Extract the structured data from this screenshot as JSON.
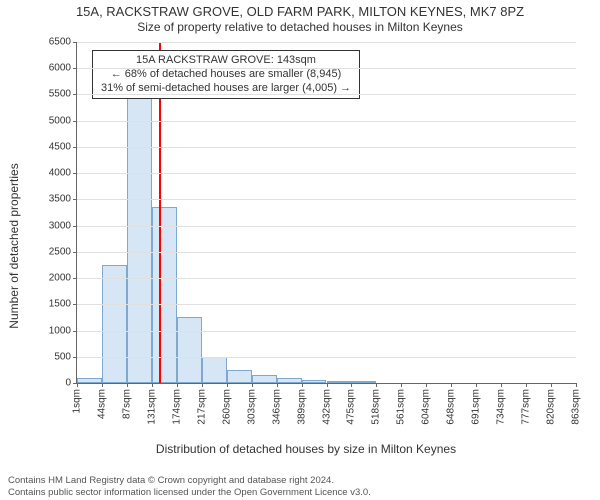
{
  "title": "15A, RACKSTRAW GROVE, OLD FARM PARK, MILTON KEYNES, MK7 8PZ",
  "subtitle": "Size of property relative to detached houses in Milton Keynes",
  "chart": {
    "type": "histogram",
    "xlabel": "Distribution of detached houses by size in Milton Keynes",
    "ylabel": "Number of detached properties",
    "background_color": "#ffffff",
    "grid_color": "#e0e0e0",
    "axis_color": "#666666",
    "bar_fill": "#d7e6f4",
    "bar_stroke": "#7fa8d0",
    "refline_color": "#ff0000",
    "title_fontsize": 13,
    "label_fontsize": 12,
    "tick_fontsize": 10,
    "annot_fontsize": 11,
    "y": {
      "min": 0,
      "max": 6500,
      "ticks": [
        0,
        500,
        1000,
        1500,
        2000,
        2500,
        3000,
        3500,
        4000,
        4500,
        5000,
        5500,
        6000,
        6500
      ]
    },
    "x": {
      "tick_labels": [
        "1sqm",
        "44sqm",
        "87sqm",
        "131sqm",
        "174sqm",
        "217sqm",
        "260sqm",
        "303sqm",
        "346sqm",
        "389sqm",
        "432sqm",
        "475sqm",
        "518sqm",
        "561sqm",
        "604sqm",
        "648sqm",
        "691sqm",
        "734sqm",
        "777sqm",
        "820sqm",
        "863sqm"
      ],
      "bar_interval": 43
    },
    "bars": [
      100,
      2250,
      5500,
      3350,
      1250,
      500,
      250,
      150,
      100,
      60,
      40,
      30,
      0,
      0,
      0,
      0,
      0,
      0,
      0,
      0
    ],
    "reference_value_sqm": 143,
    "annotation": {
      "line1": "15A RACKSTRAW GROVE: 143sqm",
      "line2": "← 68% of detached houses are smaller (8,945)",
      "line3": "31% of semi-detached houses are larger (4,005) →"
    }
  },
  "footer": {
    "line1": "Contains HM Land Registry data © Crown copyright and database right 2024.",
    "line2": "Contains public sector information licensed under the Open Government Licence v3.0."
  }
}
